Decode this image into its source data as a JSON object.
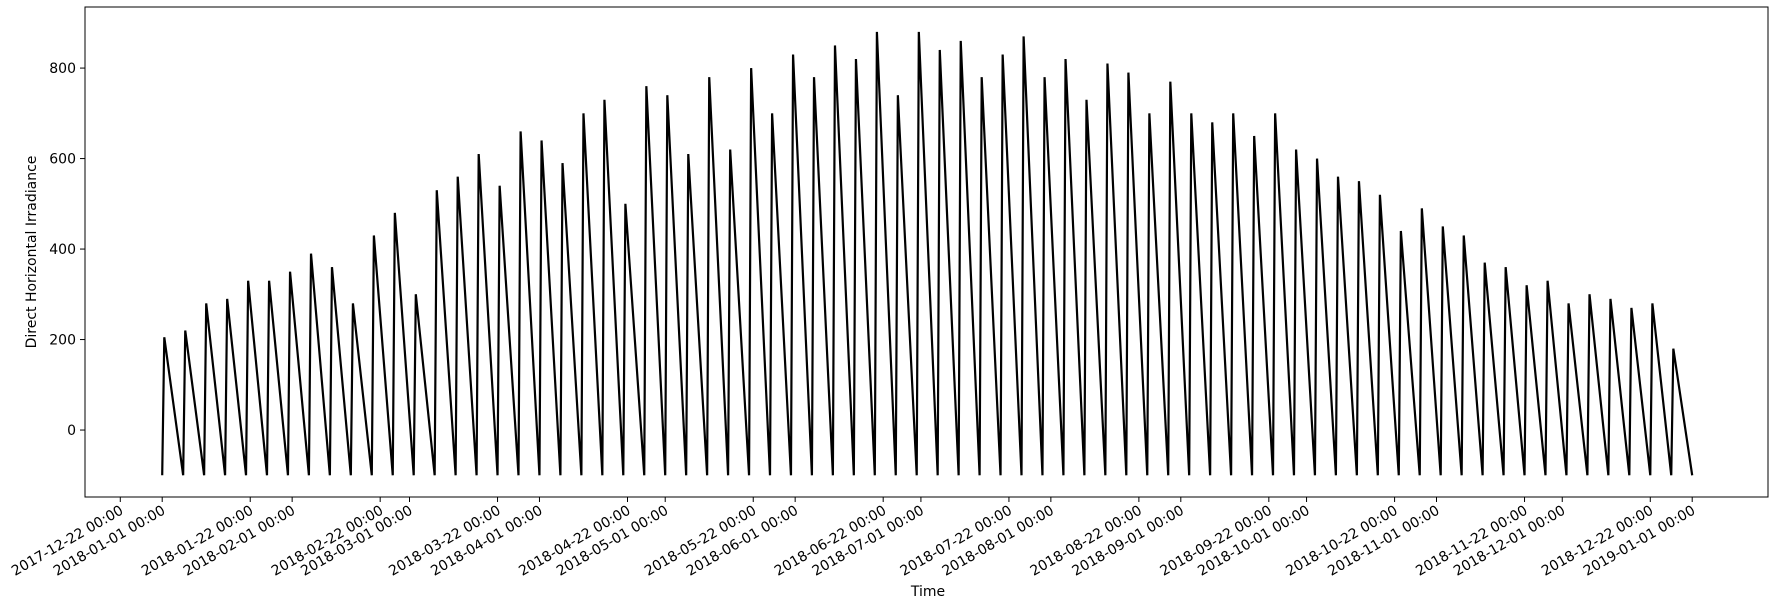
{
  "chart_data": {
    "type": "line",
    "xlabel": "Time",
    "ylabel": "Direct Horizontal Irradiance",
    "color": "#000000",
    "xlim": [
      "2017-12-13 14:00",
      "2019-01-19 02:00"
    ],
    "ylim": [
      -148,
      935
    ],
    "yticks": [
      0,
      200,
      400,
      600,
      800
    ],
    "xticks": [
      "2017-12-22 00:00",
      "2018-01-01 00:00",
      "2018-01-22 00:00",
      "2018-02-01 00:00",
      "2018-02-22 00:00",
      "2018-03-01 00:00",
      "2018-03-22 00:00",
      "2018-04-01 00:00",
      "2018-04-22 00:00",
      "2018-05-01 00:00",
      "2018-05-22 00:00",
      "2018-06-01 00:00",
      "2018-06-22 00:00",
      "2018-07-01 00:00",
      "2018-07-22 00:00",
      "2018-08-01 00:00",
      "2018-08-22 00:00",
      "2018-09-01 00:00",
      "2018-09-22 00:00",
      "2018-10-01 00:00",
      "2018-10-22 00:00",
      "2018-11-01 00:00",
      "2018-11-22 00:00",
      "2018-12-01 00:00",
      "2018-12-22 00:00",
      "2019-01-01 00:00"
    ],
    "x": [
      "2018-01-01 00:00",
      "2018-01-01 12:00",
      "2018-01-06 00:00",
      "2018-01-06 12:00",
      "2018-01-11 00:00",
      "2018-01-11 12:00",
      "2018-01-16 00:00",
      "2018-01-16 12:00",
      "2018-01-21 00:00",
      "2018-01-21 12:00",
      "2018-01-26 00:00",
      "2018-01-26 12:00",
      "2018-01-31 00:00",
      "2018-01-31 12:00",
      "2018-02-05 00:00",
      "2018-02-05 12:00",
      "2018-02-10 00:00",
      "2018-02-10 12:00",
      "2018-02-15 00:00",
      "2018-02-15 12:00",
      "2018-02-20 00:00",
      "2018-02-20 12:00",
      "2018-02-25 00:00",
      "2018-02-25 12:00",
      "2018-03-02 00:00",
      "2018-03-02 12:00",
      "2018-03-07 00:00",
      "2018-03-07 12:00",
      "2018-03-12 00:00",
      "2018-03-12 12:00",
      "2018-03-17 00:00",
      "2018-03-17 12:00",
      "2018-03-22 00:00",
      "2018-03-22 12:00",
      "2018-03-27 00:00",
      "2018-03-27 12:00",
      "2018-04-01 00:00",
      "2018-04-01 12:00",
      "2018-04-06 00:00",
      "2018-04-06 12:00",
      "2018-04-11 00:00",
      "2018-04-11 12:00",
      "2018-04-16 00:00",
      "2018-04-16 12:00",
      "2018-04-21 00:00",
      "2018-04-21 12:00",
      "2018-04-26 00:00",
      "2018-04-26 12:00",
      "2018-05-01 00:00",
      "2018-05-01 12:00",
      "2018-05-06 00:00",
      "2018-05-06 12:00",
      "2018-05-11 00:00",
      "2018-05-11 12:00",
      "2018-05-16 00:00",
      "2018-05-16 12:00",
      "2018-05-21 00:00",
      "2018-05-21 12:00",
      "2018-05-26 00:00",
      "2018-05-26 12:00",
      "2018-05-31 00:00",
      "2018-05-31 12:00",
      "2018-06-05 00:00",
      "2018-06-05 12:00",
      "2018-06-10 00:00",
      "2018-06-10 12:00",
      "2018-06-15 00:00",
      "2018-06-15 12:00",
      "2018-06-20 00:00",
      "2018-06-20 12:00",
      "2018-06-25 00:00",
      "2018-06-25 12:00",
      "2018-06-30 00:00",
      "2018-06-30 12:00",
      "2018-07-05 00:00",
      "2018-07-05 12:00",
      "2018-07-10 00:00",
      "2018-07-10 12:00",
      "2018-07-15 00:00",
      "2018-07-15 12:00",
      "2018-07-20 00:00",
      "2018-07-20 12:00",
      "2018-07-25 00:00",
      "2018-07-25 12:00",
      "2018-07-30 00:00",
      "2018-07-30 12:00",
      "2018-08-04 00:00",
      "2018-08-04 12:00",
      "2018-08-09 00:00",
      "2018-08-09 12:00",
      "2018-08-14 00:00",
      "2018-08-14 12:00",
      "2018-08-19 00:00",
      "2018-08-19 12:00",
      "2018-08-24 00:00",
      "2018-08-24 12:00",
      "2018-08-29 00:00",
      "2018-08-29 12:00",
      "2018-09-03 00:00",
      "2018-09-03 12:00",
      "2018-09-08 00:00",
      "2018-09-08 12:00",
      "2018-09-13 00:00",
      "2018-09-13 12:00",
      "2018-09-18 00:00",
      "2018-09-18 12:00",
      "2018-09-23 00:00",
      "2018-09-23 12:00",
      "2018-09-28 00:00",
      "2018-09-28 12:00",
      "2018-10-03 00:00",
      "2018-10-03 12:00",
      "2018-10-08 00:00",
      "2018-10-08 12:00",
      "2018-10-13 00:00",
      "2018-10-13 12:00",
      "2018-10-18 00:00",
      "2018-10-18 12:00",
      "2018-10-23 00:00",
      "2018-10-23 12:00",
      "2018-10-28 00:00",
      "2018-10-28 12:00",
      "2018-11-02 00:00",
      "2018-11-02 12:00",
      "2018-11-07 00:00",
      "2018-11-07 12:00",
      "2018-11-12 00:00",
      "2018-11-12 12:00",
      "2018-11-17 00:00",
      "2018-11-17 12:00",
      "2018-11-22 00:00",
      "2018-11-22 12:00",
      "2018-11-27 00:00",
      "2018-11-27 12:00",
      "2018-12-02 00:00",
      "2018-12-02 12:00",
      "2018-12-07 00:00",
      "2018-12-07 12:00",
      "2018-12-12 00:00",
      "2018-12-12 12:00",
      "2018-12-17 00:00",
      "2018-12-17 12:00",
      "2018-12-22 00:00",
      "2018-12-22 12:00",
      "2018-12-27 00:00",
      "2018-12-27 12:00",
      "2019-01-01 00:00"
    ],
    "values": [
      -100,
      205,
      -100,
      220,
      -100,
      280,
      -100,
      290,
      -100,
      330,
      -100,
      330,
      -100,
      350,
      -100,
      390,
      -100,
      360,
      -100,
      280,
      -100,
      430,
      -100,
      480,
      -100,
      300,
      -100,
      530,
      -100,
      560,
      -100,
      610,
      -100,
      540,
      -100,
      660,
      -100,
      640,
      -100,
      590,
      -100,
      700,
      -100,
      730,
      -100,
      500,
      -100,
      760,
      -100,
      740,
      -100,
      610,
      -100,
      780,
      -100,
      620,
      -100,
      800,
      -100,
      700,
      -100,
      830,
      -100,
      780,
      -100,
      850,
      -100,
      820,
      -100,
      880,
      -100,
      740,
      -100,
      880,
      -100,
      840,
      -100,
      860,
      -100,
      780,
      -100,
      830,
      -100,
      870,
      -100,
      780,
      -100,
      820,
      -100,
      730,
      -100,
      810,
      -100,
      790,
      -100,
      700,
      -100,
      770,
      -100,
      700,
      -100,
      680,
      -100,
      700,
      -100,
      650,
      -100,
      700,
      -100,
      620,
      -100,
      600,
      -100,
      560,
      -100,
      550,
      -100,
      520,
      -100,
      440,
      -100,
      490,
      -100,
      450,
      -100,
      430,
      -100,
      370,
      -100,
      360,
      -100,
      320,
      -100,
      330,
      -100,
      280,
      -100,
      300,
      -100,
      290,
      -100,
      270,
      -100,
      280,
      -100,
      180,
      -100
    ]
  }
}
